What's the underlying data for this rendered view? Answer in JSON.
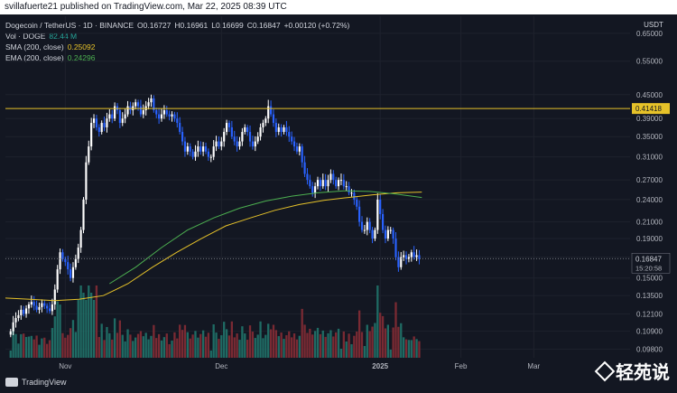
{
  "header": {
    "published_text": "svillafuerte21 published on TradingView.com, Mar 22, 2025 08:39 UTC"
  },
  "legend": {
    "symbol_line": "Dogecoin / TetherUS · 1D · BINANCE",
    "ohlc": {
      "o": "O0.16727",
      "h": "H0.16961",
      "l": "L0.16699",
      "c": "C0.16847",
      "chg": "+0.00120 (+0.72%)"
    },
    "vol_label": "Vol · DOGE",
    "vol_value": "82.44 M",
    "sma_label": "SMA (200, close)",
    "sma_value": "0.25092",
    "ema_label": "EMA (200, close)",
    "ema_value": "0.24296"
  },
  "footer": {
    "brand": "TradingView",
    "watermark": "轻苑说"
  },
  "colors": {
    "background": "#131722",
    "candle_up": "#ffffff",
    "candle_down": "#2962ff",
    "sma": "#e6c229",
    "ema": "#4caf50",
    "resistance": "#e6c229",
    "vol_up": "#1f6b64",
    "vol_down": "#7a2a33"
  },
  "chart_data": {
    "type": "candlestick",
    "symbol": "DOGE/USDT",
    "timeframe": "1D",
    "scale": "log",
    "currency_label": "USDT",
    "y_ticks": [
      0.65,
      0.55,
      0.45,
      0.39,
      0.35,
      0.31,
      0.27,
      0.24,
      0.21,
      0.19,
      0.17,
      0.15,
      0.135,
      0.121,
      0.109,
      0.098
    ],
    "y_tick_labels": [
      "0.65000",
      "0.55000",
      "0.45000",
      "0.39000",
      "0.35000",
      "0.31000",
      "0.27000",
      "0.24000",
      "0.21000",
      "0.19000",
      "0.17000",
      "0.15000",
      "0.13500",
      "0.12100",
      "0.10900",
      "0.09800"
    ],
    "x_ticks": [
      "Nov",
      "Dec",
      "2025",
      "Feb",
      "Mar"
    ],
    "x_tick_positions_days": [
      23,
      83,
      144,
      175,
      203
    ],
    "resistance_level": 0.41418,
    "resistance_label": "0.41418",
    "last_price": 0.16847,
    "last_price_label": "0.16847",
    "countdown": "15:20:58",
    "closes": [
      0.109,
      0.115,
      0.118,
      0.12,
      0.124,
      0.121,
      0.125,
      0.128,
      0.13,
      0.127,
      0.124,
      0.126,
      0.129,
      0.127,
      0.125,
      0.123,
      0.128,
      0.14,
      0.158,
      0.175,
      0.168,
      0.165,
      0.158,
      0.15,
      0.16,
      0.168,
      0.18,
      0.2,
      0.24,
      0.3,
      0.33,
      0.38,
      0.39,
      0.37,
      0.36,
      0.38,
      0.37,
      0.39,
      0.4,
      0.39,
      0.42,
      0.41,
      0.38,
      0.39,
      0.4,
      0.42,
      0.41,
      0.42,
      0.43,
      0.42,
      0.4,
      0.41,
      0.42,
      0.43,
      0.44,
      0.41,
      0.4,
      0.39,
      0.4,
      0.41,
      0.4,
      0.395,
      0.4,
      0.39,
      0.38,
      0.36,
      0.34,
      0.32,
      0.33,
      0.32,
      0.31,
      0.32,
      0.33,
      0.32,
      0.33,
      0.32,
      0.31,
      0.31,
      0.33,
      0.34,
      0.33,
      0.34,
      0.36,
      0.38,
      0.37,
      0.35,
      0.34,
      0.33,
      0.34,
      0.36,
      0.37,
      0.36,
      0.34,
      0.33,
      0.34,
      0.35,
      0.37,
      0.38,
      0.39,
      0.42,
      0.4,
      0.38,
      0.36,
      0.37,
      0.36,
      0.37,
      0.36,
      0.35,
      0.34,
      0.33,
      0.32,
      0.33,
      0.3,
      0.28,
      0.27,
      0.26,
      0.25,
      0.26,
      0.27,
      0.26,
      0.27,
      0.26,
      0.27,
      0.28,
      0.27,
      0.26,
      0.27,
      0.27,
      0.26,
      0.26,
      0.25,
      0.25,
      0.24,
      0.23,
      0.21,
      0.2,
      0.2,
      0.21,
      0.2,
      0.19,
      0.2,
      0.24,
      0.22,
      0.2,
      0.19,
      0.2,
      0.2,
      0.19,
      0.17,
      0.16,
      0.17,
      0.172,
      0.168,
      0.17,
      0.175,
      0.17,
      0.172,
      0.168
    ],
    "sma200": {
      "start_day": 0,
      "values": [
        0.133,
        0.132,
        0.131,
        0.132,
        0.135,
        0.145,
        0.16,
        0.175,
        0.19,
        0.205,
        0.215,
        0.225,
        0.233,
        0.239,
        0.243,
        0.247,
        0.25,
        0.251
      ]
    },
    "ema200": {
      "start_day": 40,
      "values": [
        0.145,
        0.16,
        0.18,
        0.2,
        0.215,
        0.228,
        0.238,
        0.245,
        0.25,
        0.253,
        0.252,
        0.248,
        0.243
      ]
    }
  }
}
